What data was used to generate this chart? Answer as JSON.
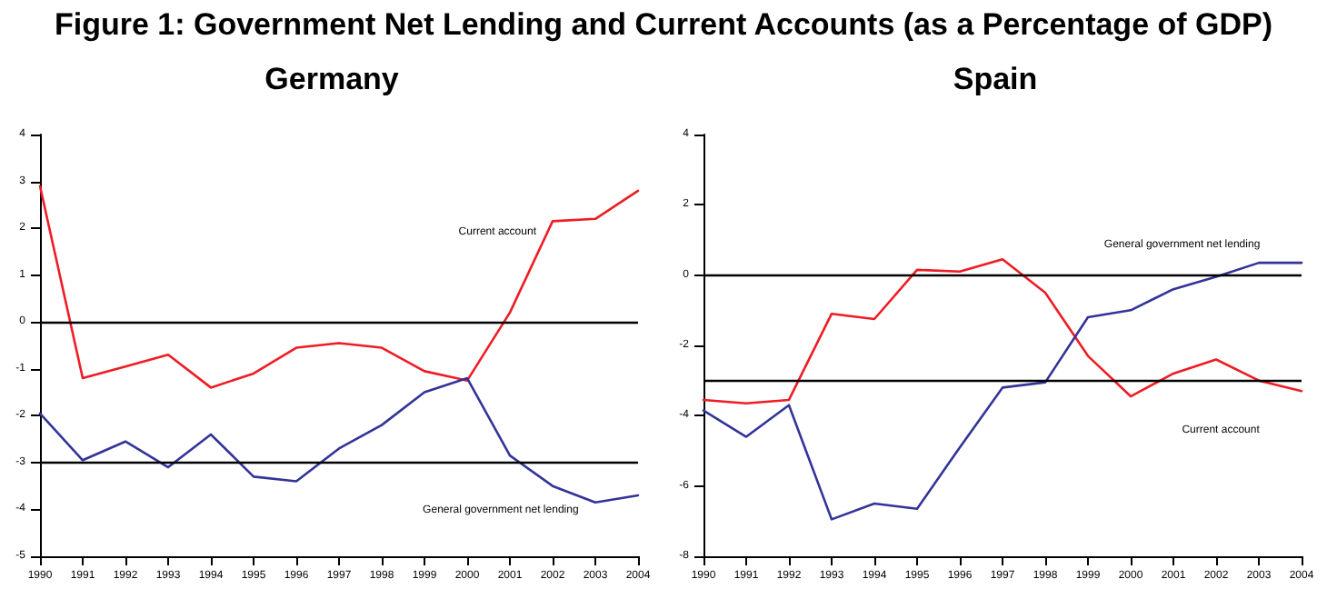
{
  "chart_data": [
    {
      "type": "line",
      "title": "Figure 1: Government Net Lending and Current Accounts (as a Percentage of GDP)",
      "subtitle": "Germany",
      "categories": [
        "1990",
        "1991",
        "1992",
        "1993",
        "1994",
        "1995",
        "1996",
        "1997",
        "1998",
        "1999",
        "2000",
        "2001",
        "2002",
        "2003",
        "2004"
      ],
      "series": [
        {
          "color": "#ee1c25",
          "values": [
            2.9,
            -1.2,
            -0.95,
            -0.7,
            -1.4,
            -1.1,
            -0.55,
            -0.45,
            -0.55,
            -1.05,
            -1.25,
            0.2,
            2.15,
            2.2,
            2.8
          ]
        },
        {
          "color": "#333399",
          "values": [
            -1.95,
            -2.95,
            -2.55,
            -3.1,
            -2.4,
            -3.3,
            -3.4,
            -2.7,
            -2.2,
            -1.5,
            -1.2,
            -2.85,
            -3.5,
            -3.85,
            -3.7
          ]
        }
      ],
      "ylim": [
        -5,
        4
      ],
      "yticks": [
        -5,
        -4,
        -3,
        -2,
        -1,
        0,
        1,
        2,
        3,
        4
      ],
      "ref_lines": [
        {
          "axis": "y",
          "value": 0,
          "color": "#000000"
        },
        {
          "axis": "y",
          "value": -3,
          "color": "#000000"
        }
      ],
      "annotations": [
        "Current account",
        "General government net lending"
      ],
      "grid": false,
      "marker": "none",
      "line_style": "solid"
    },
    {
      "type": "line",
      "title": "Spain",
      "categories": [
        "1990",
        "1991",
        "1992",
        "1993",
        "1994",
        "1995",
        "1996",
        "1997",
        "1998",
        "1999",
        "2000",
        "2001",
        "2002",
        "2003",
        "2004"
      ],
      "series": [
        {
          "color": "#ee1c25",
          "values": [
            -3.55,
            -3.65,
            -3.55,
            -1.1,
            -1.25,
            0.15,
            0.1,
            0.45,
            -0.5,
            -2.3,
            -3.45,
            -2.8,
            -2.4,
            -3.0,
            -3.3
          ]
        },
        {
          "color": "#333399",
          "values": [
            -3.85,
            -4.6,
            -3.7,
            -6.95,
            -6.5,
            -6.65,
            -4.9,
            -3.2,
            -3.05,
            -1.2,
            -1.0,
            -0.4,
            -0.05,
            0.35,
            0.35
          ]
        }
      ],
      "ylim": [
        -8,
        4
      ],
      "yticks": [
        -8,
        -6,
        -4,
        -2,
        0,
        2,
        4
      ],
      "ref_lines": [
        {
          "axis": "y",
          "value": 0,
          "color": "#000000"
        },
        {
          "axis": "y",
          "value": -3,
          "color": "#000000"
        }
      ],
      "annotations": [
        "General government net lending",
        "Current account"
      ],
      "grid": false,
      "marker": "none",
      "line_style": "solid"
    }
  ]
}
